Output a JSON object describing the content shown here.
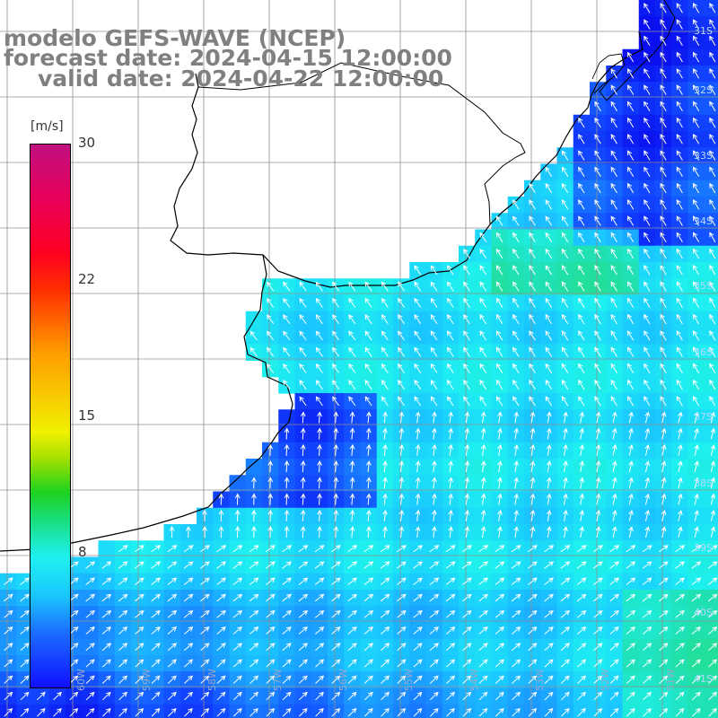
{
  "title": {
    "line1": "modelo GEFS-WAVE (NCEP)",
    "line2": "forecast date: 2024-04-15 12:00:00",
    "line3": "valid date: 2024-04-22 12:00:00"
  },
  "colorbar": {
    "unit": "[m/s]",
    "ticks": [
      "30",
      "22",
      "15",
      "8"
    ],
    "min": 0,
    "max": 30
  },
  "lat_labels": [
    "31S",
    "32S",
    "33S",
    "34S",
    "35S",
    "36S",
    "37S",
    "38S",
    "39S",
    "40S",
    "41S"
  ],
  "lon_labels": [
    "60W",
    "59W",
    "58W",
    "57W",
    "56W",
    "55W",
    "54W",
    "53W",
    "52W",
    "51W"
  ],
  "colors": {
    "land": "#ffffff",
    "grid": "#909090",
    "coast": "#000000",
    "arrow": "#ffffff",
    "title": "#808080"
  }
}
